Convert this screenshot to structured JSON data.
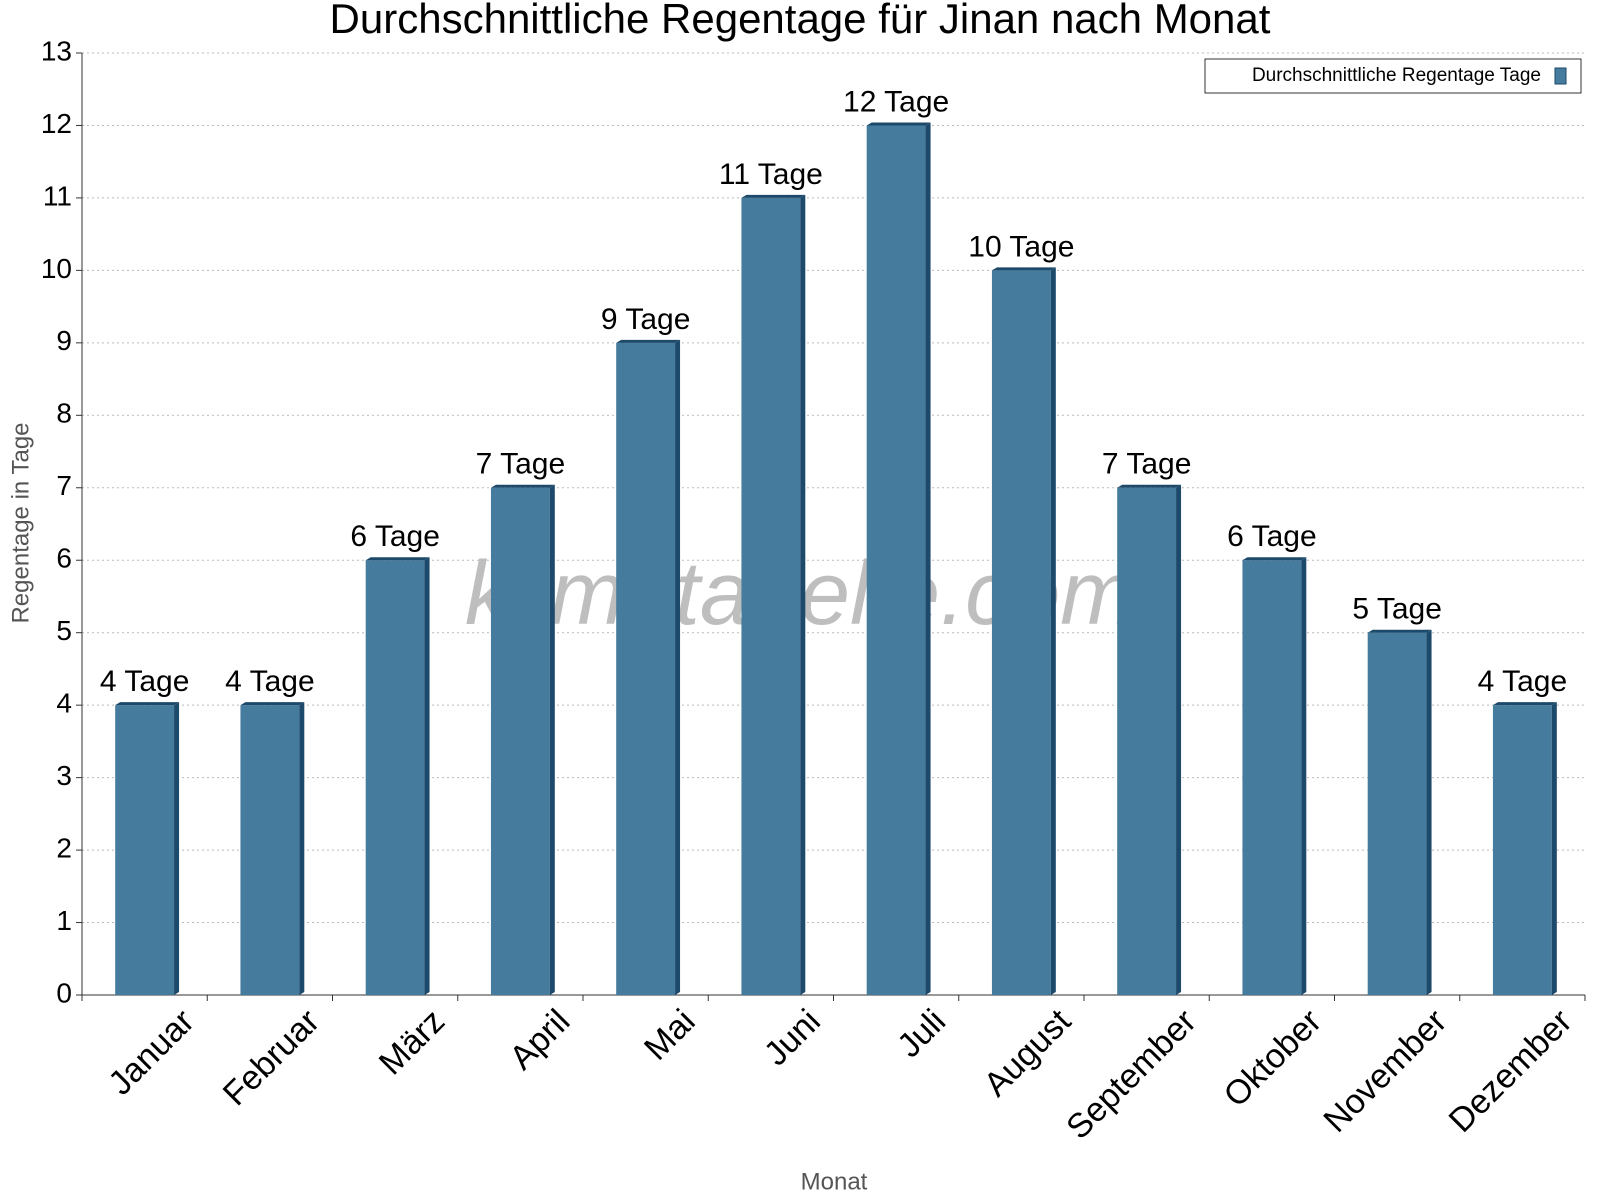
{
  "chart_data": {
    "type": "bar",
    "title": "Durchschnittliche Regentage für Jinan nach Monat",
    "x_label": "Monat",
    "y_label": "Regentage in Tage",
    "watermark": "klimatabelle.com",
    "categories": [
      "Januar",
      "Februar",
      "März",
      "April",
      "Mai",
      "Juni",
      "Juli",
      "August",
      "September",
      "Oktober",
      "November",
      "Dezember"
    ],
    "series": [
      {
        "name": "Durchschnittliche Regentage Tage",
        "color": "#457b9d",
        "values": [
          4,
          4,
          6,
          7,
          9,
          11,
          12,
          10,
          7,
          6,
          5,
          4
        ],
        "value_labels": [
          "4 Tage",
          "4 Tage",
          "6 Tage",
          "7 Tage",
          "9 Tage",
          "11 Tage",
          "12 Tage",
          "10 Tage",
          "7 Tage",
          "6 Tage",
          "5 Tage",
          "4 Tage"
        ]
      }
    ],
    "ylim": [
      0,
      13
    ],
    "yticks": [
      0,
      1,
      2,
      3,
      4,
      5,
      6,
      7,
      8,
      9,
      10,
      11,
      12,
      13
    ],
    "grid": true,
    "legend": "upper right"
  }
}
